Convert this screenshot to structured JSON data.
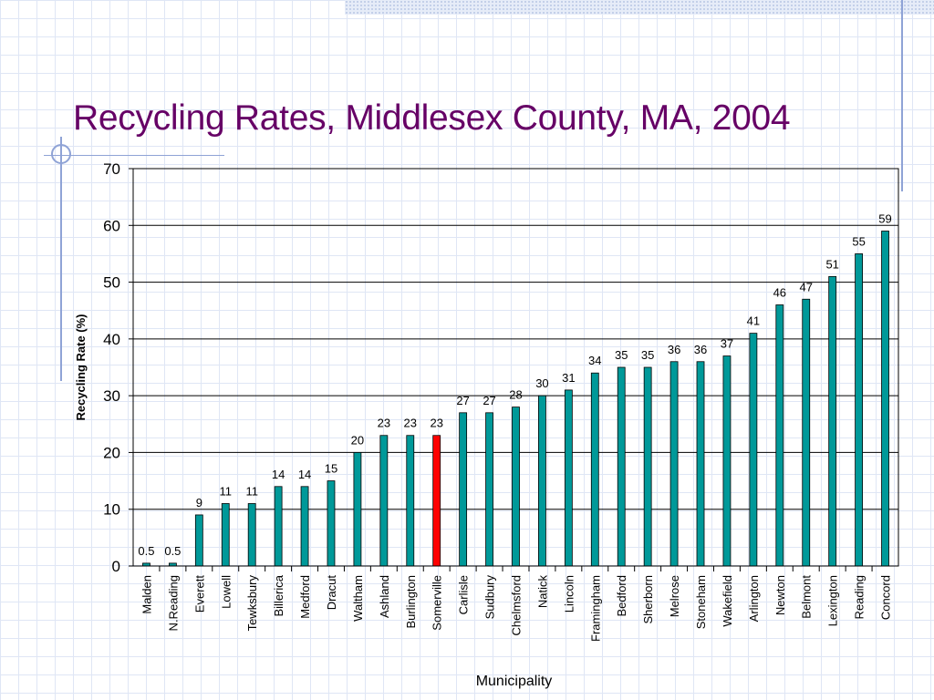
{
  "slide": {
    "title": "Recycling Rates, Middlesex County, MA, 2004"
  },
  "colors": {
    "bar": "#009999",
    "highlight": "#ff0000",
    "title": "#660066",
    "accent": "#8fa3d6"
  },
  "chart_data": {
    "type": "bar",
    "title": "Recycling Rates, Middlesex County, MA, 2004",
    "xlabel": "Municipality",
    "ylabel": "Recycling Rate (%)",
    "ylim": [
      0,
      70
    ],
    "yticks": [
      0,
      10,
      20,
      30,
      40,
      50,
      60,
      70
    ],
    "grid": true,
    "legend": "none",
    "highlight_category": "Somerville",
    "categories": [
      "Malden",
      "N.Reading",
      "Everett",
      "Lowell",
      "Tewksbury",
      "Billerica",
      "Medford",
      "Dracut",
      "Waltham",
      "Ashland",
      "Burlington",
      "Somerville",
      "Carlisle",
      "Sudbury",
      "Chelmsford",
      "Natick",
      "Lincoln",
      "Framingham",
      "Bedford",
      "Sherborn",
      "Melrose",
      "Stoneham",
      "Wakefield",
      "Arlington",
      "Newton",
      "Belmont",
      "Lexington",
      "Reading",
      "Concord"
    ],
    "values": [
      0.5,
      0.5,
      9,
      11,
      11,
      14,
      14,
      15,
      20,
      23,
      23,
      23,
      27,
      27,
      28,
      30,
      31,
      34,
      35,
      35,
      36,
      36,
      37,
      41,
      46,
      47,
      51,
      55,
      59
    ],
    "value_labels": [
      "0.5",
      "0.5",
      "9",
      "11",
      "11",
      "14",
      "14",
      "15",
      "20",
      "23",
      "23",
      "23",
      "27",
      "27",
      "28",
      "30",
      "31",
      "34",
      "35",
      "35",
      "36",
      "36",
      "37",
      "41",
      "46",
      "47",
      "51",
      "55",
      "59"
    ]
  }
}
